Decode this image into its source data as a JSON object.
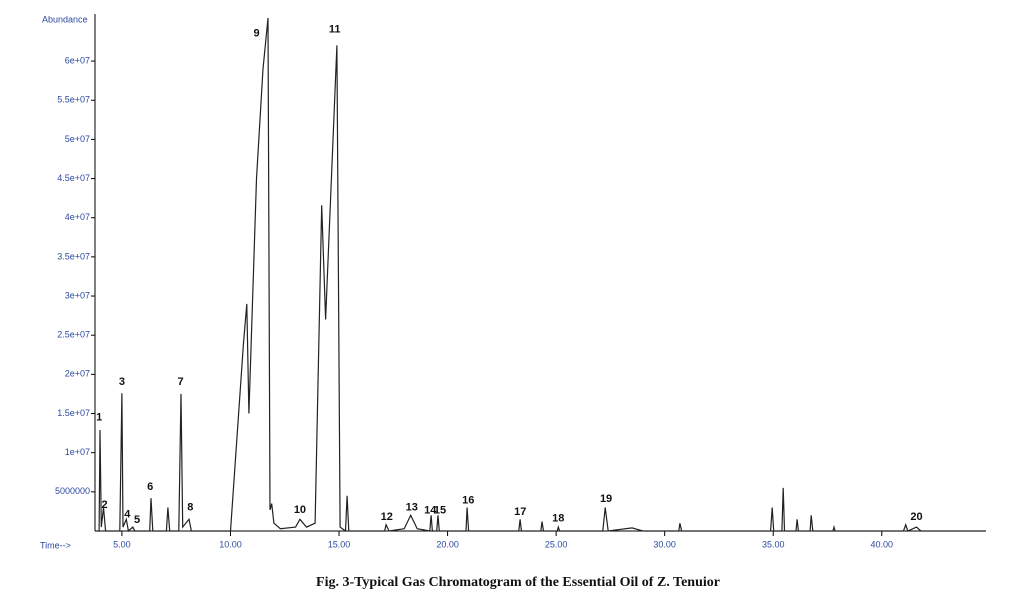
{
  "chart_data": {
    "type": "line",
    "title": "Fig. 3-Typical Gas Chromatogram of the Essential Oil of Z. Tenuior",
    "y_label": "Abundance",
    "x_label": "Time-->",
    "color": "#222222",
    "x": [
      3.76,
      3.95,
      3.99,
      4.05,
      4.15,
      4.25,
      4.9,
      5.0,
      5.05,
      5.2,
      5.3,
      5.5,
      5.6,
      6.28,
      6.34,
      6.42,
      7.05,
      7.12,
      7.2,
      7.62,
      7.72,
      7.8,
      8.09,
      8.2,
      10.0,
      10.6,
      10.75,
      10.85,
      11.2,
      11.5,
      11.73,
      11.82,
      11.9,
      12.0,
      12.3,
      13.0,
      13.2,
      13.5,
      13.9,
      14.2,
      14.38,
      14.9,
      15.05,
      15.3,
      15.37,
      15.45,
      17.1,
      17.17,
      17.3,
      18.0,
      18.3,
      18.6,
      19.18,
      19.24,
      19.3,
      19.5,
      19.56,
      19.62,
      20.85,
      20.9,
      20.97,
      23.28,
      23.34,
      23.4,
      24.3,
      24.35,
      24.42,
      25.05,
      25.1,
      25.16,
      27.15,
      27.26,
      27.4,
      28.5,
      29,
      30.65,
      30.7,
      30.78,
      34.88,
      34.95,
      35.02,
      35.4,
      35.46,
      35.52,
      36.05,
      36.1,
      36.16,
      36.7,
      36.75,
      36.82,
      37.75,
      37.8,
      37.85,
      41.0,
      41.1,
      41.2,
      41.6,
      41.8,
      44.8
    ],
    "values": [
      0,
      0,
      12900000,
      500000,
      3000000,
      0,
      0,
      17600000,
      500000,
      1500000,
      0,
      500000,
      0,
      0,
      4200000,
      0,
      0,
      3000000,
      0,
      0,
      17500000,
      500000,
      1500000,
      0,
      0,
      24000000,
      29000000,
      15000000,
      45000000,
      59000000,
      65500000,
      2700000,
      3500000,
      1000000,
      300000,
      500000,
      1500000,
      500000,
      1000000,
      41600000,
      27000000,
      62000000,
      500000,
      0,
      4500000,
      0,
      0,
      800000,
      0,
      300000,
      2000000,
      300000,
      0,
      2000000,
      0,
      0,
      2000000,
      0,
      0,
      3000000,
      0,
      0,
      1500000,
      0,
      0,
      1200000,
      0,
      0,
      500000,
      0,
      0,
      3000000,
      0,
      400000,
      0,
      0,
      1000000,
      0,
      0,
      3000000,
      0,
      0,
      5500000,
      0,
      0,
      1500000,
      0,
      0,
      2000000,
      0,
      0,
      500000,
      0,
      0,
      800000,
      0,
      500000,
      0,
      0
    ],
    "xlim": [
      3.76,
      44.8
    ],
    "ylim": [
      0,
      65500000
    ],
    "xticks": [
      {
        "value": 5,
        "label": "5.00"
      },
      {
        "value": 10,
        "label": "10.00"
      },
      {
        "value": 15,
        "label": "15.00"
      },
      {
        "value": 20,
        "label": "20.00"
      },
      {
        "value": 25,
        "label": "25.00"
      },
      {
        "value": 30,
        "label": "30.00"
      },
      {
        "value": 35,
        "label": "35.00"
      },
      {
        "value": 40,
        "label": "40.00"
      }
    ],
    "yticks": [
      5000000,
      {
        "value": 10000000,
        "label": "1e+07"
      },
      {
        "value": 15000000,
        "label": "1.5e+07"
      },
      {
        "value": 20000000,
        "label": "2e+07"
      },
      {
        "value": 25000000,
        "label": "2.5e+07"
      },
      {
        "value": 30000000,
        "label": "3e+07"
      },
      {
        "value": 35000000,
        "label": "3.5e+07"
      },
      {
        "value": 40000000,
        "label": "4e+07"
      },
      {
        "value": 45000000,
        "label": "4.5e+07"
      },
      {
        "value": 50000000,
        "label": "5e+07"
      },
      {
        "value": 55000000,
        "label": "5.5e+07"
      },
      {
        "value": 60000000,
        "label": "6e+07"
      }
    ],
    "annotations": [
      {
        "text": "1",
        "x": 3.95,
        "y": 14500000
      },
      {
        "text": "2",
        "x": 4.2,
        "y": 3300000
      },
      {
        "text": "3",
        "x": 5.0,
        "y": 19000000
      },
      {
        "text": "4",
        "x": 5.25,
        "y": 2100000
      },
      {
        "text": "5",
        "x": 5.7,
        "y": 1400000
      },
      {
        "text": "6",
        "x": 6.3,
        "y": 5600000
      },
      {
        "text": "7",
        "x": 7.7,
        "y": 19000000
      },
      {
        "text": "8",
        "x": 8.15,
        "y": 3000000
      },
      {
        "text": "9",
        "x": 11.2,
        "y": 63500000
      },
      {
        "text": "10",
        "x": 13.2,
        "y": 2700000
      },
      {
        "text": "11",
        "x": 14.8,
        "y": 64000000
      },
      {
        "text": "12",
        "x": 17.2,
        "y": 1800000
      },
      {
        "text": "13",
        "x": 18.35,
        "y": 3000000
      },
      {
        "text": "14",
        "x": 19.2,
        "y": 2600000
      },
      {
        "text": "15",
        "x": 19.65,
        "y": 2600000
      },
      {
        "text": "16",
        "x": 20.95,
        "y": 3900000
      },
      {
        "text": "17",
        "x": 23.35,
        "y": 2400000
      },
      {
        "text": "18",
        "x": 25.1,
        "y": 1600000
      },
      {
        "text": "19",
        "x": 27.3,
        "y": 4100000
      },
      {
        "text": "20",
        "x": 41.6,
        "y": 1800000
      }
    ]
  }
}
